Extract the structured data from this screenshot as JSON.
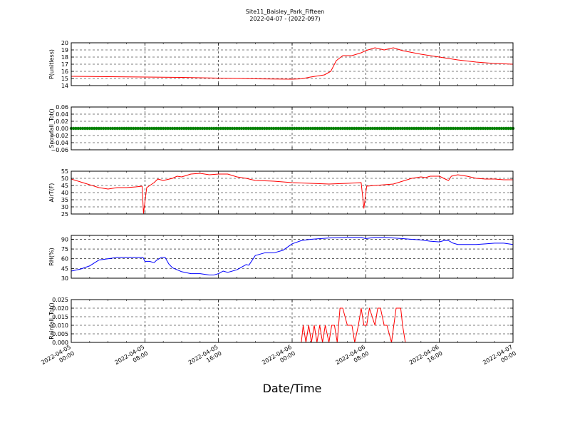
{
  "figure": {
    "title": "Site11_Baisley_Park_Fifteen",
    "subtitle": "2022-04-07 - (2022-097)",
    "xlabel": "Date/Time",
    "x_ticks": [
      {
        "value": 0,
        "line1": "2022-04-05",
        "line2": "00:00"
      },
      {
        "value": 8,
        "line1": "2022-04-05",
        "line2": "08:00"
      },
      {
        "value": 16,
        "line1": "2022-04-05",
        "line2": "16:00"
      },
      {
        "value": 24,
        "line1": "2022-04-06",
        "line2": "00:00"
      },
      {
        "value": 32,
        "line1": "2022-04-06",
        "line2": "08:00"
      },
      {
        "value": 40,
        "line1": "2022-04-06",
        "line2": "16:00"
      },
      {
        "value": 48,
        "line1": "2022-04-07",
        "line2": "00:00"
      }
    ],
    "x_range_hours": [
      0,
      48
    ],
    "grid": true
  },
  "chart_data": [
    {
      "type": "line",
      "ylabel": "P(unitless)",
      "ylim": [
        14,
        20
      ],
      "yticks": [
        "14",
        "15",
        "16",
        "17",
        "18",
        "19",
        "20"
      ],
      "ytick_values": [
        14,
        15,
        16,
        17,
        18,
        19,
        20
      ],
      "color": "#ff0000",
      "series": [
        {
          "x": [
            0,
            4,
            8,
            12,
            16,
            20,
            24,
            25,
            26,
            27.5,
            28.2,
            28.8,
            29.5,
            30.5,
            31.5,
            32,
            33,
            34,
            35,
            36,
            38,
            40,
            42,
            44,
            46,
            48
          ],
          "y": [
            15.3,
            15.25,
            15.2,
            15.15,
            15.05,
            14.95,
            14.9,
            14.95,
            15.2,
            15.5,
            16.0,
            17.5,
            18.2,
            18.2,
            18.6,
            18.9,
            19.3,
            19.0,
            19.3,
            18.9,
            18.4,
            18.0,
            17.6,
            17.3,
            17.1,
            17.0
          ]
        }
      ]
    },
    {
      "type": "scatter",
      "ylabel": "Snowfall_Tot()",
      "ylim": [
        -0.06,
        0.06
      ],
      "yticks": [
        "−0.06",
        "−0.04",
        "−0.02",
        "0.00",
        "0.02",
        "0.04",
        "0.06"
      ],
      "ytick_values": [
        -0.06,
        -0.04,
        -0.02,
        0,
        0.02,
        0.04,
        0.06
      ],
      "color": "#008000",
      "series": [
        {
          "constant_value": 0.0,
          "x_start": 0,
          "x_end": 48,
          "x_step": 0.25
        }
      ]
    },
    {
      "type": "line",
      "ylabel": "AirT(F)",
      "ylim": [
        25,
        55
      ],
      "yticks": [
        "25",
        "30",
        "35",
        "40",
        "45",
        "50",
        "55"
      ],
      "ytick_values": [
        25,
        30,
        35,
        40,
        45,
        50,
        55
      ],
      "color": "#ff0000",
      "series": [
        {
          "x": [
            0,
            1,
            2,
            3,
            4,
            5,
            6,
            7,
            7.7,
            7.85,
            8.2,
            9,
            9.4,
            10,
            11,
            11.5,
            12,
            13,
            14,
            15,
            16,
            17,
            18,
            19,
            20,
            22,
            24,
            26,
            28,
            30,
            31.5,
            31.8,
            32.1,
            33,
            34,
            35,
            36,
            37,
            38,
            38.5,
            39,
            40,
            40.8,
            41,
            41.3,
            42,
            43,
            44,
            45,
            46,
            47,
            48
          ],
          "y": [
            49.5,
            47.5,
            45.5,
            43.5,
            42.5,
            43.5,
            43.5,
            44,
            44.5,
            25.5,
            43.5,
            47,
            49.5,
            48.5,
            50,
            51.5,
            51,
            53,
            53.5,
            52.5,
            53,
            53,
            51,
            50,
            48.5,
            48,
            47,
            46.5,
            46,
            46.5,
            47,
            29,
            44.5,
            45,
            45.5,
            46,
            48,
            50,
            51,
            50.5,
            51.5,
            51.5,
            49,
            48.5,
            51.5,
            52.5,
            51.5,
            50,
            49.5,
            49.5,
            49,
            49
          ]
        }
      ]
    },
    {
      "type": "line",
      "ylabel": "RH(%)",
      "ylim": [
        30,
        96
      ],
      "yticks": [
        "30",
        "45",
        "60",
        "75",
        "90"
      ],
      "ytick_values": [
        30,
        45,
        60,
        75,
        90
      ],
      "color": "#0000ff",
      "series": [
        {
          "x": [
            0,
            1,
            2,
            3,
            4,
            5,
            6,
            7,
            7.8,
            8,
            8.5,
            9,
            9.3,
            9.8,
            10.2,
            10.6,
            11,
            12,
            13,
            14,
            15,
            15.5,
            16,
            16.5,
            17,
            18,
            19,
            19.3,
            20,
            21,
            21.5,
            22,
            23,
            24,
            25,
            26,
            28,
            30,
            31.5,
            32,
            33,
            34,
            35,
            36,
            37,
            38,
            39,
            40,
            40.5,
            41,
            41.5,
            42,
            43,
            44,
            45,
            46,
            47,
            48
          ],
          "y": [
            41,
            44,
            49,
            58,
            60,
            62,
            62,
            62,
            62,
            56,
            56,
            54,
            58,
            62,
            62,
            52,
            46,
            40,
            37,
            37,
            35,
            35,
            37,
            41,
            39,
            43,
            51,
            50,
            65,
            69,
            69,
            69,
            73,
            83,
            88,
            90,
            92,
            93,
            93,
            91,
            93,
            93,
            92,
            91,
            90,
            89,
            87,
            86,
            88,
            88,
            84,
            82,
            82,
            82,
            83,
            84,
            84,
            82
          ]
        }
      ]
    },
    {
      "type": "line",
      "ylabel": "Rainfall_Tot()",
      "ylim": [
        0,
        0.025
      ],
      "yticks": [
        "0.000",
        "0.005",
        "0.010",
        "0.015",
        "0.020",
        "0.025"
      ],
      "ytick_values": [
        0,
        0.005,
        0.01,
        0.015,
        0.02,
        0.025
      ],
      "color": "#ff0000",
      "series": [
        {
          "x": [
            0,
            25,
            25.2,
            25.5,
            25.8,
            26.1,
            26.4,
            26.7,
            27.0,
            27.3,
            27.6,
            28.0,
            28.3,
            28.6,
            28.9,
            29.2,
            29.5,
            30.0,
            30.5,
            30.8,
            31.2,
            31.5,
            31.8,
            32.1,
            32.4,
            33.0,
            33.3,
            33.6,
            34.0,
            34.3,
            34.8,
            35.3,
            35.8,
            36.0,
            36.3,
            48
          ],
          "y": [
            0,
            0,
            0.01,
            0,
            0.01,
            0,
            0.01,
            0,
            0.01,
            0,
            0.01,
            0,
            0.01,
            0.01,
            0,
            0.02,
            0.02,
            0.01,
            0.01,
            0,
            0.01,
            0.02,
            0.01,
            0.01,
            0.02,
            0.01,
            0.02,
            0.02,
            0.01,
            0.01,
            0,
            0.02,
            0.02,
            0.01,
            0,
            0
          ]
        }
      ]
    }
  ]
}
